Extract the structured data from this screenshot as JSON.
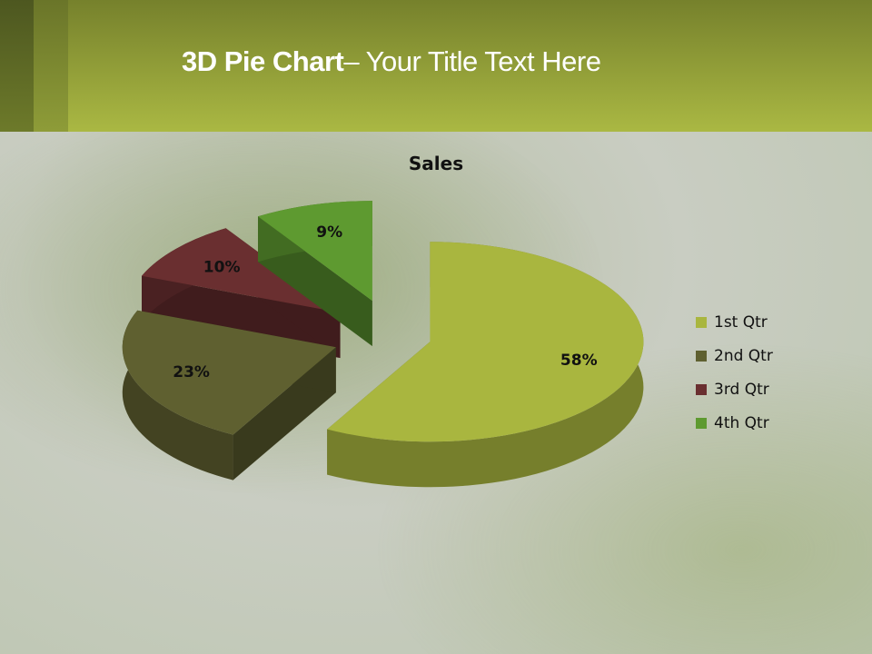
{
  "slide": {
    "title_bold": "3D Pie Chart",
    "title_rest": "– Your Title Text Here"
  },
  "chart_data": {
    "type": "pie",
    "style": "3d-exploded",
    "title": "Sales",
    "categories": [
      "1st Qtr",
      "2nd Qtr",
      "3rd Qtr",
      "4th Qtr"
    ],
    "values": [
      58,
      23,
      10,
      9
    ],
    "labels": [
      "58%",
      "23%",
      "10%",
      "9%"
    ],
    "colors": [
      "#a9b63f",
      "#5f6030",
      "#6a2f30",
      "#5e9a30"
    ],
    "legend_position": "right"
  }
}
